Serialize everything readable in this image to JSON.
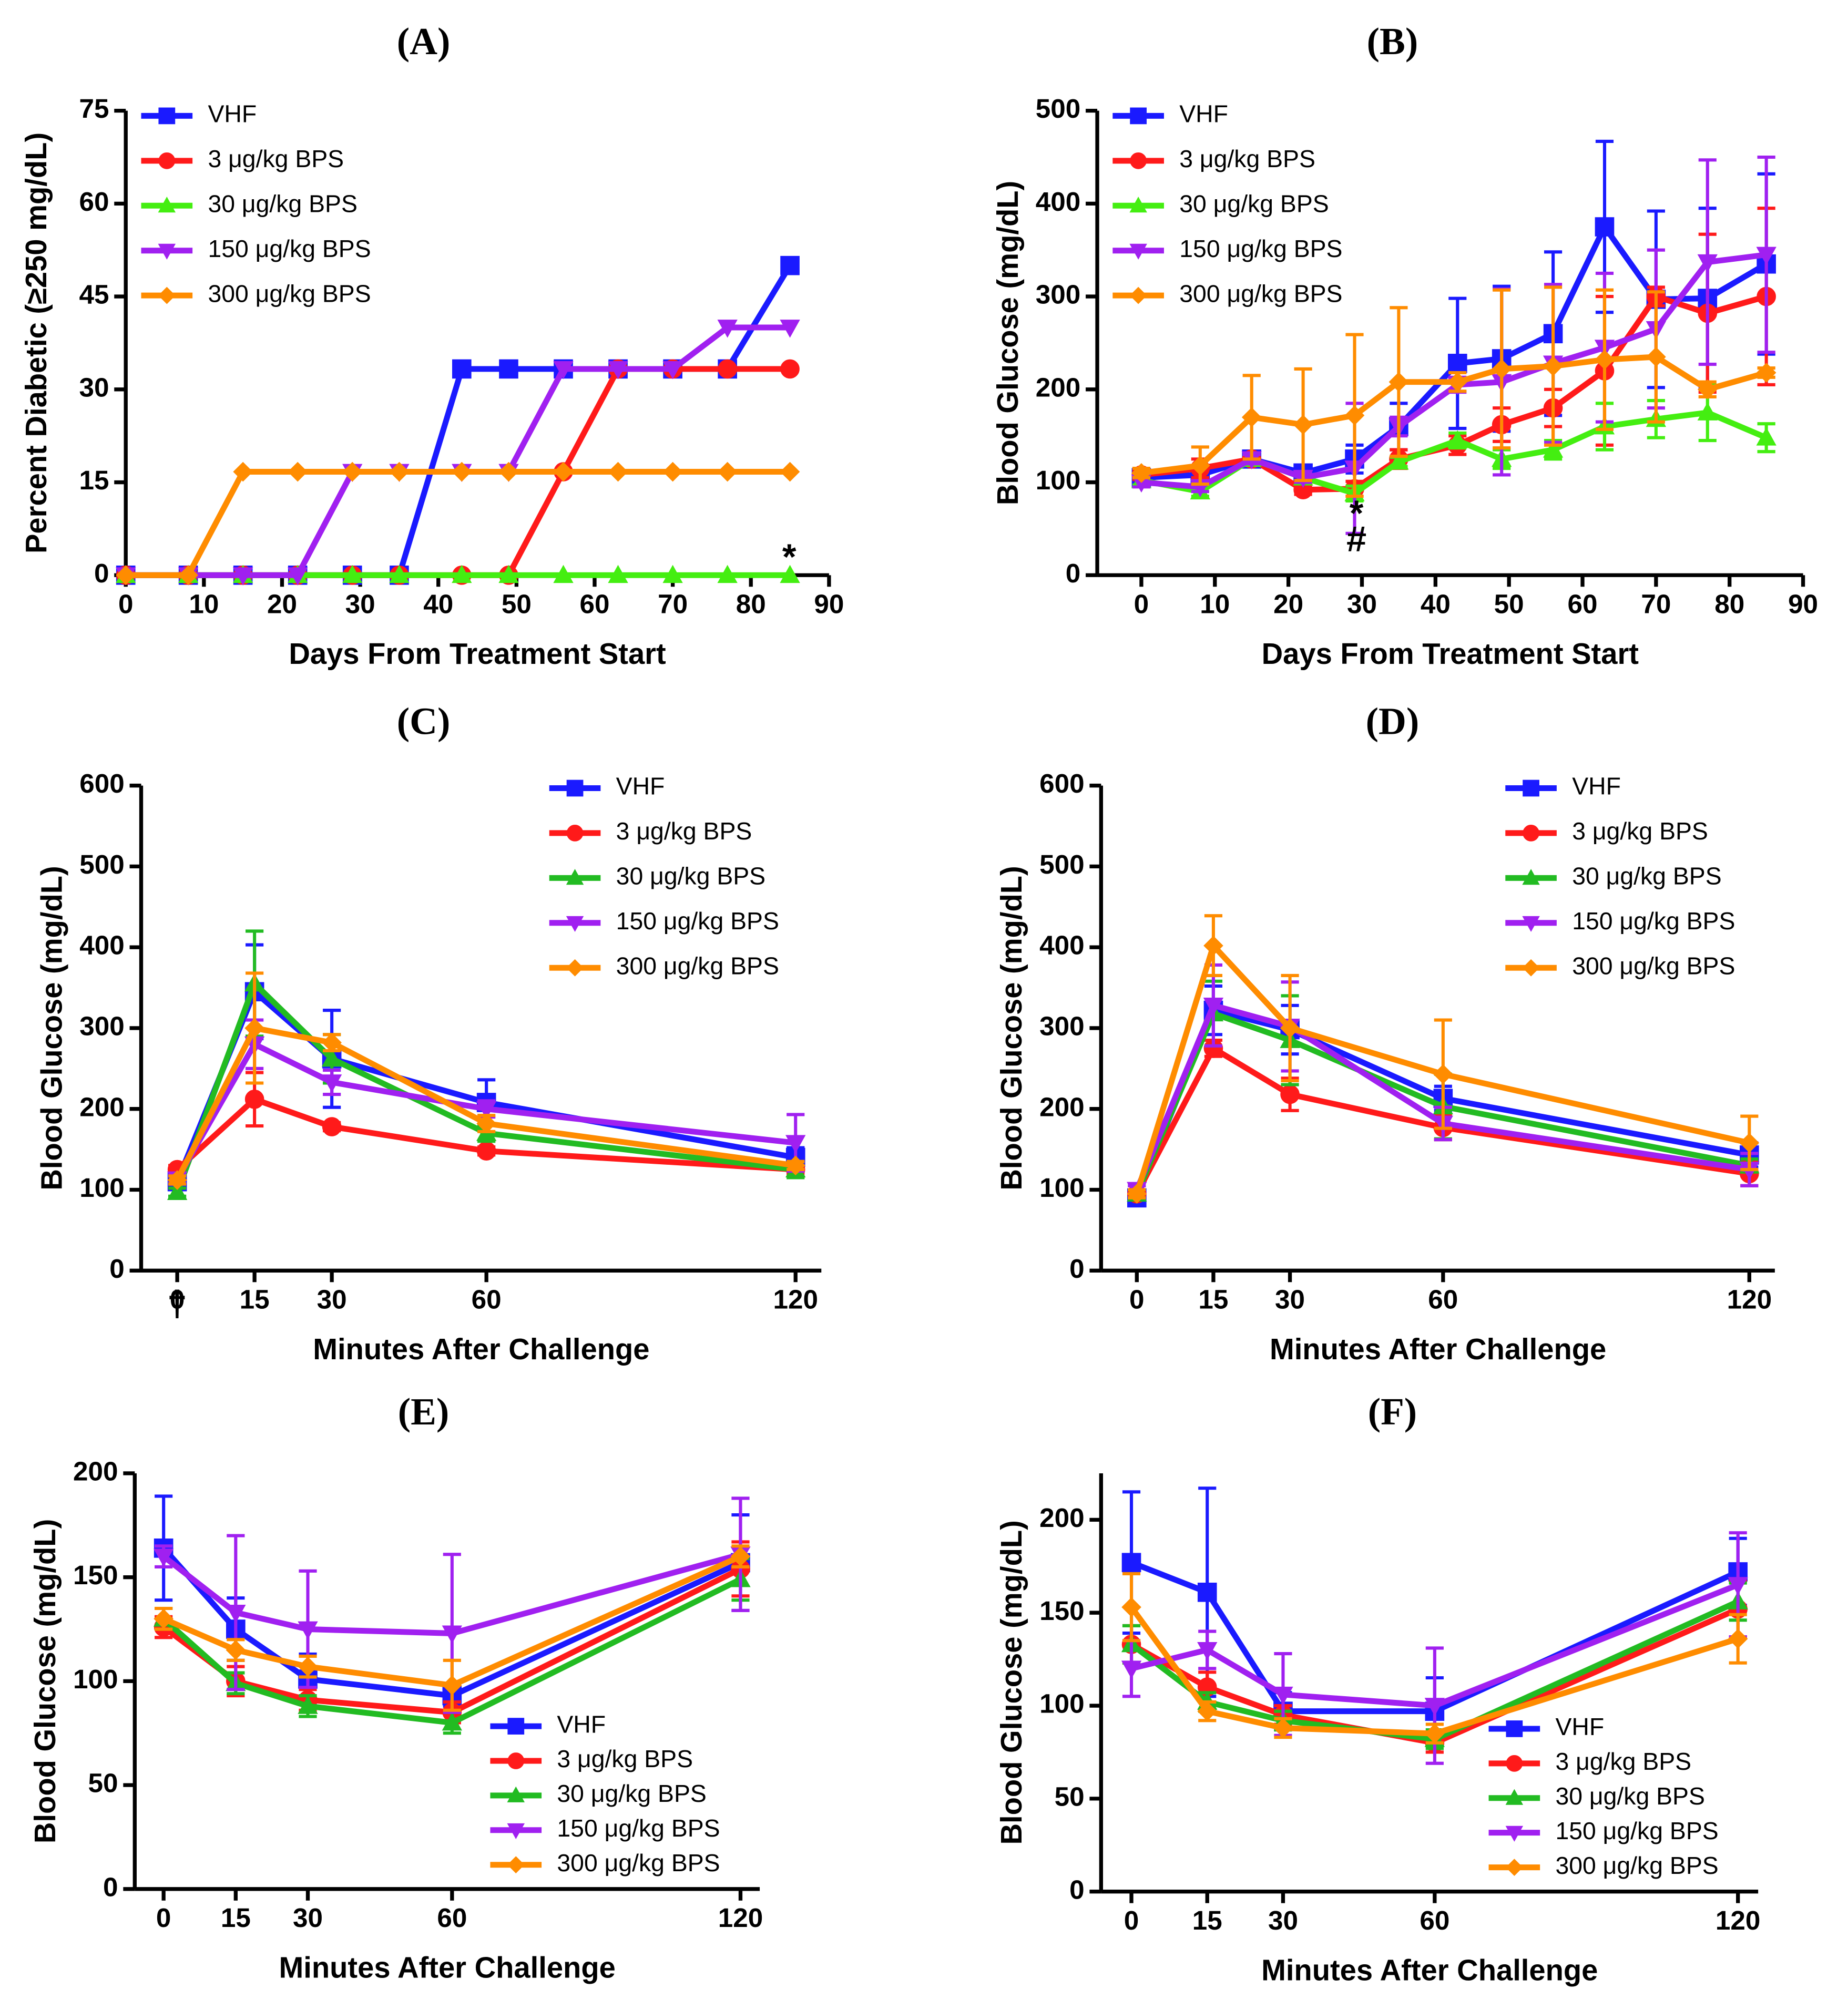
{
  "chart_data": [
    {
      "type": "line",
      "title": "(A)",
      "x_label": "Days From Treatment Start",
      "y_label": "Percent Diabetic (≥250 mg/dL)",
      "x": [
        0,
        8,
        15,
        22,
        29,
        35,
        43,
        49,
        56,
        63,
        70,
        77,
        85
      ],
      "xlim": [
        0,
        90
      ],
      "xticks": [
        0,
        10,
        20,
        30,
        40,
        50,
        60,
        70,
        80,
        90
      ],
      "ylim": [
        0,
        75
      ],
      "yticks": [
        0,
        15,
        30,
        45,
        60,
        75
      ],
      "legend": "upper left",
      "annotations": [
        "*"
      ],
      "series": [
        {
          "name": "VHF",
          "color": "#1a1aff",
          "marker": "square",
          "values": [
            0,
            0,
            0,
            0,
            0,
            0,
            33.3,
            33.3,
            33.3,
            33.3,
            33.3,
            33.3,
            50
          ]
        },
        {
          "name": "3 μg/kg BPS",
          "color": "#ff1a1a",
          "marker": "circle",
          "values": [
            0,
            0,
            0,
            0,
            0,
            0,
            0,
            0,
            16.7,
            33.3,
            33.3,
            33.3,
            33.3
          ]
        },
        {
          "name": "30 μg/kg BPS",
          "color": "#44ee11",
          "marker": "triangle-up",
          "values": [
            0,
            0,
            0,
            0,
            0,
            0,
            0,
            0,
            0,
            0,
            0,
            0,
            0
          ]
        },
        {
          "name": "150 μg/kg BPS",
          "color": "#a020f0",
          "marker": "triangle-down",
          "values": [
            0,
            0,
            0,
            0,
            16.7,
            16.7,
            16.7,
            16.7,
            33.3,
            33.3,
            33.3,
            40,
            40
          ]
        },
        {
          "name": "300 μg/kg BPS",
          "color": "#ff8c00",
          "marker": "diamond",
          "values": [
            0,
            0,
            16.7,
            16.7,
            16.7,
            16.7,
            16.7,
            16.7,
            16.7,
            16.7,
            16.7,
            16.7,
            16.7
          ]
        }
      ]
    },
    {
      "type": "line",
      "title": "(B)",
      "x_label": "Days From Treatment Start",
      "y_label": "Blood Glucose (mg/dL)",
      "x": [
        0,
        8,
        15,
        22,
        29,
        35,
        43,
        49,
        56,
        63,
        70,
        77,
        85
      ],
      "xlim": [
        -6,
        90
      ],
      "xticks": [
        0,
        10,
        20,
        30,
        40,
        50,
        60,
        70,
        80,
        90
      ],
      "ylim": [
        0,
        500
      ],
      "yticks": [
        0,
        100,
        200,
        300,
        400,
        500
      ],
      "legend": "upper left",
      "annotations": [
        "*",
        "#"
      ],
      "series": [
        {
          "name": "VHF",
          "color": "#1a1aff",
          "marker": "square",
          "values": [
            105,
            108,
            125,
            110,
            125,
            160,
            228,
            233,
            260,
            375,
            297,
            298,
            335
          ],
          "errors": [
            8,
            10,
            5,
            8,
            15,
            25,
            70,
            78,
            88,
            92,
            95,
            97,
            97
          ]
        },
        {
          "name": "3 μg/kg BPS",
          "color": "#ff1a1a",
          "marker": "circle",
          "values": [
            108,
            115,
            125,
            92,
            93,
            125,
            140,
            162,
            180,
            220,
            300,
            282,
            300
          ],
          "errors": [
            5,
            10,
            5,
            5,
            8,
            10,
            10,
            18,
            20,
            80,
            10,
            85,
            95
          ]
        },
        {
          "name": "30 μg/kg BPS",
          "color": "#44ee11",
          "marker": "triangle-up",
          "values": [
            102,
            90,
            125,
            105,
            88,
            122,
            145,
            125,
            135,
            160,
            168,
            175,
            148
          ],
          "errors": [
            5,
            5,
            5,
            5,
            8,
            5,
            8,
            10,
            10,
            25,
            20,
            30,
            15
          ]
        },
        {
          "name": "150 μg/kg BPS",
          "color": "#a020f0",
          "marker": "triangle-down",
          "values": [
            100,
            95,
            125,
            105,
            115,
            160,
            205,
            208,
            228,
            245,
            265,
            337,
            345
          ],
          "errors": [
            5,
            5,
            5,
            5,
            70,
            10,
            8,
            100,
            85,
            80,
            85,
            110,
            105
          ]
        },
        {
          "name": "300 μg/kg BPS",
          "color": "#ff8c00",
          "marker": "diamond",
          "values": [
            110,
            118,
            170,
            162,
            172,
            208,
            208,
            222,
            225,
            232,
            235,
            200,
            218
          ],
          "errors": [
            5,
            20,
            45,
            60,
            87,
            80,
            10,
            85,
            85,
            75,
            70,
            8,
            5
          ]
        }
      ]
    },
    {
      "type": "line",
      "title": "(C)",
      "x_label": "Minutes After Challenge",
      "y_label": "Blood Glucose (mg/dL)",
      "x": [
        0,
        15,
        30,
        60,
        120
      ],
      "xlim": [
        -7,
        125
      ],
      "xticks": [
        0,
        15,
        30,
        60,
        120
      ],
      "ylim": [
        0,
        600
      ],
      "yticks": [
        0,
        100,
        200,
        300,
        400,
        500,
        600
      ],
      "legend": "upper right",
      "annotations": [
        "†"
      ],
      "series": [
        {
          "name": "VHF",
          "color": "#1a1aff",
          "marker": "square",
          "values": [
            110,
            345,
            262,
            208,
            140
          ],
          "errors": [
            10,
            58,
            60,
            28,
            12
          ]
        },
        {
          "name": "3 μg/kg BPS",
          "color": "#ff1a1a",
          "marker": "circle",
          "values": [
            125,
            212,
            178,
            148,
            125
          ],
          "errors": [
            5,
            33,
            5,
            5,
            5
          ]
        },
        {
          "name": "30 μg/kg BPS",
          "color": "#22bb22",
          "marker": "triangle-up",
          "values": [
            97,
            355,
            262,
            170,
            125
          ],
          "errors": [
            5,
            65,
            30,
            10,
            10
          ]
        },
        {
          "name": "150 μg/kg BPS",
          "color": "#a020f0",
          "marker": "triangle-down",
          "values": [
            113,
            280,
            233,
            200,
            158
          ],
          "errors": [
            5,
            30,
            15,
            10,
            35
          ]
        },
        {
          "name": "300 μg/kg BPS",
          "color": "#ff8c00",
          "marker": "diamond",
          "values": [
            112,
            300,
            282,
            182,
            130
          ],
          "errors": [
            5,
            68,
            10,
            10,
            5
          ]
        }
      ]
    },
    {
      "type": "line",
      "title": "(D)",
      "x_label": "Minutes After Challenge",
      "y_label": "Blood Glucose (mg/dL)",
      "x": [
        0,
        15,
        30,
        60,
        120
      ],
      "xlim": [
        -7,
        125
      ],
      "xticks": [
        0,
        15,
        30,
        60,
        120
      ],
      "ylim": [
        0,
        600
      ],
      "yticks": [
        0,
        100,
        200,
        300,
        400,
        500,
        600
      ],
      "legend": "upper right",
      "series": [
        {
          "name": "VHF",
          "color": "#1a1aff",
          "marker": "square",
          "values": [
            90,
            322,
            298,
            213,
            143
          ],
          "errors": [
            5,
            30,
            30,
            15,
            15
          ]
        },
        {
          "name": "3 μg/kg BPS",
          "color": "#ff1a1a",
          "marker": "circle",
          "values": [
            95,
            275,
            218,
            177,
            120
          ],
          "errors": [
            5,
            10,
            20,
            15,
            15
          ]
        },
        {
          "name": "30 μg/kg BPS",
          "color": "#22bb22",
          "marker": "triangle-up",
          "values": [
            95,
            318,
            285,
            203,
            130
          ],
          "errors": [
            5,
            40,
            55,
            40,
            8
          ]
        },
        {
          "name": "150 μg/kg BPS",
          "color": "#a020f0",
          "marker": "triangle-down",
          "values": [
            100,
            328,
            302,
            182,
            125
          ],
          "errors": [
            5,
            50,
            55,
            20,
            20
          ]
        },
        {
          "name": "300 μg/kg BPS",
          "color": "#ff8c00",
          "marker": "diamond",
          "values": [
            95,
            402,
            300,
            243,
            158
          ],
          "errors": [
            5,
            37,
            65,
            67,
            33
          ]
        }
      ]
    },
    {
      "type": "line",
      "title": "(E)",
      "x_label": "Minutes After Challenge",
      "y_label": "Blood Glucose (mg/dL)",
      "x": [
        0,
        15,
        30,
        60,
        120
      ],
      "xlim": [
        -6,
        124
      ],
      "xticks": [
        0,
        15,
        30,
        60,
        120
      ],
      "ylim": [
        0,
        200
      ],
      "yticks": [
        0,
        50,
        100,
        150,
        200
      ],
      "legend": "lower right",
      "series": [
        {
          "name": "VHF",
          "color": "#1a1aff",
          "marker": "square",
          "values": [
            164,
            125,
            101,
            93,
            157
          ],
          "errors": [
            25,
            15,
            12,
            5,
            23
          ]
        },
        {
          "name": "3 μg/kg BPS",
          "color": "#ff1a1a",
          "marker": "circle",
          "values": [
            126,
            100,
            91,
            85,
            154
          ],
          "errors": [
            5,
            7,
            5,
            5,
            13
          ]
        },
        {
          "name": "30 μg/kg BPS",
          "color": "#22bb22",
          "marker": "triangle-up",
          "values": [
            130,
            99,
            88,
            80,
            149
          ],
          "errors": [
            5,
            5,
            5,
            5,
            10
          ]
        },
        {
          "name": "150 μg/kg BPS",
          "color": "#a020f0",
          "marker": "triangle-down",
          "values": [
            160,
            133,
            125,
            123,
            161
          ],
          "errors": [
            5,
            37,
            28,
            38,
            27
          ]
        },
        {
          "name": "300 μg/kg BPS",
          "color": "#ff8c00",
          "marker": "diamond",
          "values": [
            130,
            115,
            107,
            98,
            160
          ],
          "errors": [
            5,
            5,
            5,
            12,
            5
          ]
        }
      ]
    },
    {
      "type": "line",
      "title": "(F)",
      "x_label": "Minutes After Challenge",
      "y_label": "Blood Glucose (mg/dL)",
      "x": [
        0,
        15,
        30,
        60,
        120
      ],
      "xlim": [
        -6,
        124
      ],
      "xticks": [
        0,
        15,
        30,
        60,
        120
      ],
      "ylim": [
        0,
        225
      ],
      "yticks": [
        0,
        50,
        100,
        150,
        200
      ],
      "legend": "lower right",
      "series": [
        {
          "name": "VHF",
          "color": "#1a1aff",
          "marker": "square",
          "values": [
            177,
            161,
            97,
            97,
            172
          ],
          "errors": [
            38,
            56,
            10,
            18,
            18
          ]
        },
        {
          "name": "3 μg/kg BPS",
          "color": "#ff1a1a",
          "marker": "circle",
          "values": [
            133,
            110,
            95,
            80,
            152
          ],
          "errors": [
            10,
            8,
            5,
            5,
            15
          ]
        },
        {
          "name": "30 μg/kg BPS",
          "color": "#22bb22",
          "marker": "triangle-up",
          "values": [
            133,
            102,
            92,
            82,
            156
          ],
          "errors": [
            10,
            5,
            5,
            5,
            10
          ]
        },
        {
          "name": "150 μg/kg BPS",
          "color": "#a020f0",
          "marker": "triangle-down",
          "values": [
            120,
            130,
            106,
            100,
            165
          ],
          "errors": [
            15,
            10,
            22,
            31,
            28
          ]
        },
        {
          "name": "300 μg/kg BPS",
          "color": "#ff8c00",
          "marker": "diamond",
          "values": [
            153,
            97,
            88,
            85,
            136
          ],
          "errors": [
            18,
            5,
            5,
            5,
            13
          ]
        }
      ]
    }
  ]
}
